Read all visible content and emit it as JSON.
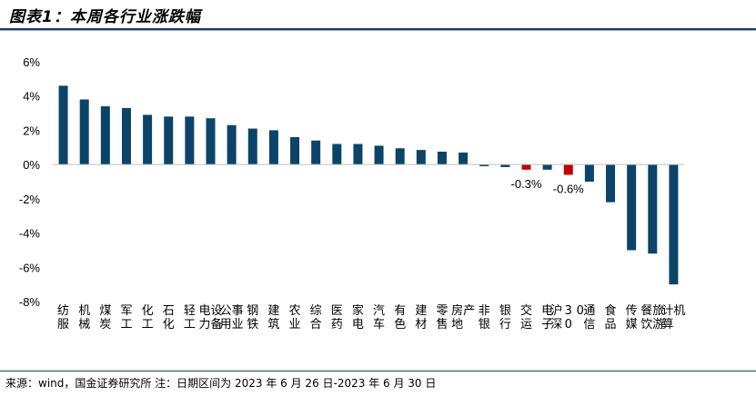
{
  "header": {
    "title": "图表1：本周各行业涨跌幅"
  },
  "footer": {
    "source": "来源：wind，国金证券研究所   注：日期区间为 2023 年 6 月 26 日-2023 年 6 月 30 日"
  },
  "colors": {
    "positive": "#0b4468",
    "negative": "#c00000",
    "rule": "#1f3e5a"
  },
  "chart_data": {
    "type": "bar",
    "title": "",
    "xlabel": "",
    "ylabel": "",
    "ylim": [
      -8,
      6
    ],
    "yticks": [
      6,
      4,
      2,
      0,
      -2,
      -4,
      -6,
      -8
    ],
    "ytick_labels": [
      "6%",
      "4%",
      "2%",
      "0%",
      "-2%",
      "-4%",
      "-6%",
      "-8%"
    ],
    "grid": false,
    "categories": [
      "纺服",
      "机械",
      "煤炭",
      "军工",
      "化工",
      "石化",
      "轻工",
      "电力设备",
      "公用事业",
      "钢铁",
      "建筑",
      "农业",
      "综合",
      "医药",
      "家电",
      "汽车",
      "有色",
      "建材",
      "零售",
      "房地产",
      "非银",
      "银行",
      "交运",
      "电子",
      "沪深300",
      "通信",
      "食品",
      "传媒",
      "餐饮旅游",
      "计算机"
    ],
    "values": [
      4.6,
      3.8,
      3.4,
      3.3,
      2.9,
      2.8,
      2.8,
      2.7,
      2.3,
      2.1,
      2.0,
      1.6,
      1.4,
      1.2,
      1.2,
      1.1,
      0.95,
      0.85,
      0.75,
      0.7,
      -0.1,
      -0.15,
      -0.3,
      -0.3,
      -0.6,
      -1.0,
      -2.2,
      -5.0,
      -5.2,
      -7.0
    ],
    "highlighted": [
      "交运",
      "沪深300"
    ],
    "data_labels": [
      {
        "category": "交运",
        "text": "-0.3%"
      },
      {
        "category": "沪深300",
        "text": "-0.6%"
      }
    ]
  }
}
